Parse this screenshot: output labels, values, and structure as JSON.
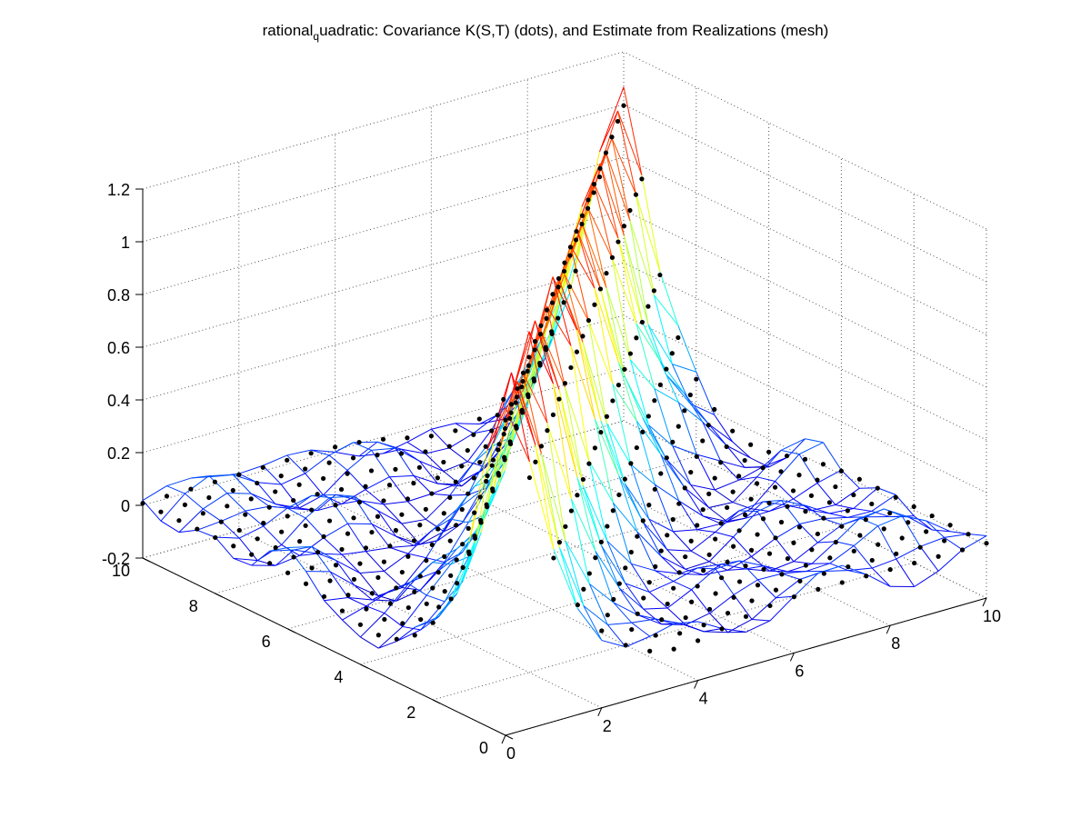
{
  "figure": {
    "title": {
      "prefix": "rational",
      "subscript": "q",
      "suffix": "uadratic: Covariance K(S,T) (dots), and Estimate from Realizations (mesh)"
    }
  },
  "chart_data": {
    "type": "surface-3d",
    "title": "rational_quadratic: Covariance K(S,T) (dots), and Estimate from Realizations (mesh)",
    "xlabel": "",
    "ylabel": "",
    "zlabel": "",
    "xlim": [
      0,
      10
    ],
    "ylim": [
      0,
      10
    ],
    "zlim": [
      -0.2,
      1.2
    ],
    "x_ticks": [
      "0",
      "2",
      "4",
      "6",
      "8",
      "10"
    ],
    "y_ticks": [
      "0",
      "2",
      "4",
      "6",
      "8",
      "10"
    ],
    "z_ticks": [
      "-0.2",
      "0",
      "0.2",
      "0.4",
      "0.6",
      "0.8",
      "1",
      "1.2"
    ],
    "grid": true,
    "grid_points": [
      0,
      0.5,
      1,
      1.5,
      2,
      2.5,
      3,
      3.5,
      4,
      4.5,
      5,
      5.5,
      6,
      6.5,
      7,
      7.5,
      8,
      8.5,
      9,
      9.5,
      10
    ],
    "series": [
      {
        "name": "Covariance K(S,T)",
        "style": "dots",
        "peak": 1.0,
        "min_approx": -0.1
      },
      {
        "name": "Estimate from Realizations",
        "style": "mesh",
        "peak_approx": 1.05
      }
    ],
    "colormap": "jet"
  }
}
